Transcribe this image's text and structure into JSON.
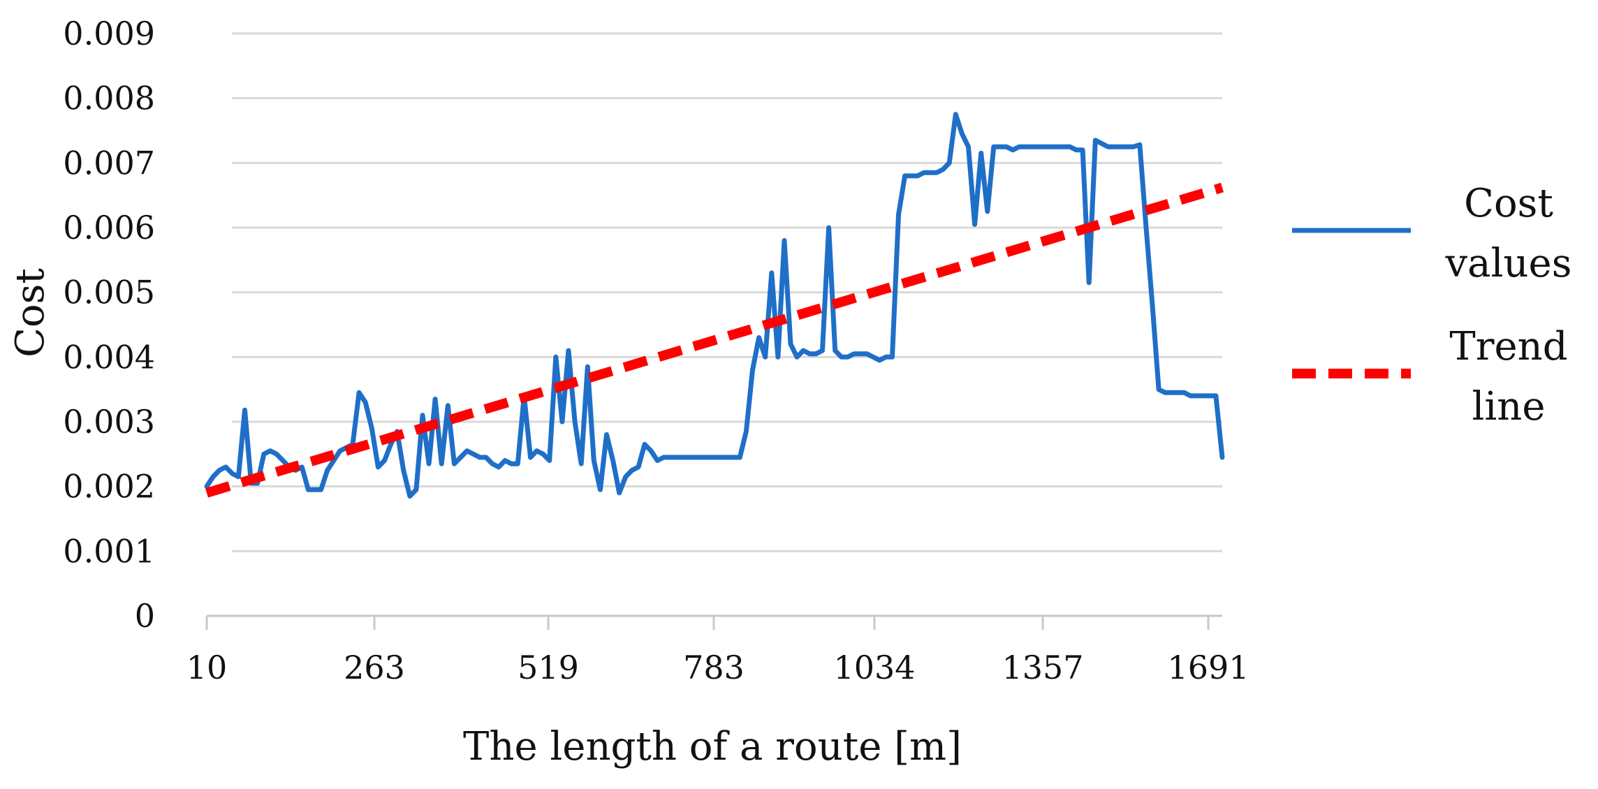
{
  "chart_data": {
    "type": "line",
    "title": "",
    "xlabel": "The length of a route [m]",
    "ylabel": "Cost",
    "ylim": [
      0,
      0.009
    ],
    "y_ticks": [
      "0",
      "0.001",
      "0.002",
      "0.003",
      "0.004",
      "0.005",
      "0.006",
      "0.007",
      "0.008",
      "0.009"
    ],
    "x_ticks": [
      "10",
      "263",
      "519",
      "783",
      "1034",
      "1357",
      "1691"
    ],
    "point_count": 161,
    "grid": true,
    "legend_position": "right",
    "series": [
      {
        "name": "Cost values",
        "color": "#1f6fc8",
        "style": "solid",
        "values": [
          0.002,
          0.00215,
          0.00225,
          0.0023,
          0.0022,
          0.00215,
          0.00318,
          0.00205,
          0.00205,
          0.0025,
          0.00255,
          0.0025,
          0.0024,
          0.0023,
          0.00225,
          0.0023,
          0.00195,
          0.00195,
          0.00195,
          0.00225,
          0.0024,
          0.00255,
          0.0026,
          0.00265,
          0.00345,
          0.0033,
          0.0029,
          0.0023,
          0.0024,
          0.00265,
          0.00285,
          0.00225,
          0.00185,
          0.00195,
          0.0031,
          0.00235,
          0.00335,
          0.00235,
          0.00325,
          0.00235,
          0.00245,
          0.00255,
          0.0025,
          0.00245,
          0.00245,
          0.00235,
          0.0023,
          0.0024,
          0.00235,
          0.00235,
          0.0034,
          0.00245,
          0.00255,
          0.0025,
          0.0024,
          0.004,
          0.003,
          0.0041,
          0.003,
          0.00235,
          0.00385,
          0.0024,
          0.00195,
          0.0028,
          0.0024,
          0.0019,
          0.00215,
          0.00225,
          0.0023,
          0.00265,
          0.00255,
          0.0024,
          0.00245,
          0.00245,
          0.00245,
          0.00245,
          0.00245,
          0.00245,
          0.00245,
          0.00245,
          0.00245,
          0.00245,
          0.00245,
          0.00245,
          0.00245,
          0.00285,
          0.0038,
          0.0043,
          0.004,
          0.0053,
          0.004,
          0.0058,
          0.0042,
          0.004,
          0.0041,
          0.00405,
          0.00405,
          0.0041,
          0.006,
          0.0041,
          0.004,
          0.004,
          0.00405,
          0.00405,
          0.00405,
          0.004,
          0.00395,
          0.004,
          0.004,
          0.0062,
          0.0068,
          0.0068,
          0.0068,
          0.00685,
          0.00685,
          0.00685,
          0.0069,
          0.007,
          0.00775,
          0.00745,
          0.00725,
          0.00605,
          0.00715,
          0.00625,
          0.00725,
          0.00725,
          0.00725,
          0.0072,
          0.00725,
          0.00725,
          0.00725,
          0.00725,
          0.00725,
          0.00725,
          0.00725,
          0.00725,
          0.00725,
          0.0072,
          0.0072,
          0.00515,
          0.00735,
          0.0073,
          0.00725,
          0.00725,
          0.00725,
          0.00725,
          0.00725,
          0.00728,
          0.006,
          0.0048,
          0.0035,
          0.00345,
          0.00345,
          0.00345,
          0.00345,
          0.0034,
          0.0034,
          0.0034,
          0.0034,
          0.0034,
          0.00245
        ]
      },
      {
        "name": "Trend line",
        "color": "#ff0000",
        "style": "dashed",
        "values": [
          0.0019,
          0.00662
        ]
      }
    ],
    "legend": [
      {
        "lines": [
          "Cost",
          "values"
        ],
        "color": "#1f6fc8",
        "style": "solid"
      },
      {
        "lines": [
          "Trend",
          "line"
        ],
        "color": "#ff0000",
        "style": "dashed"
      }
    ]
  }
}
